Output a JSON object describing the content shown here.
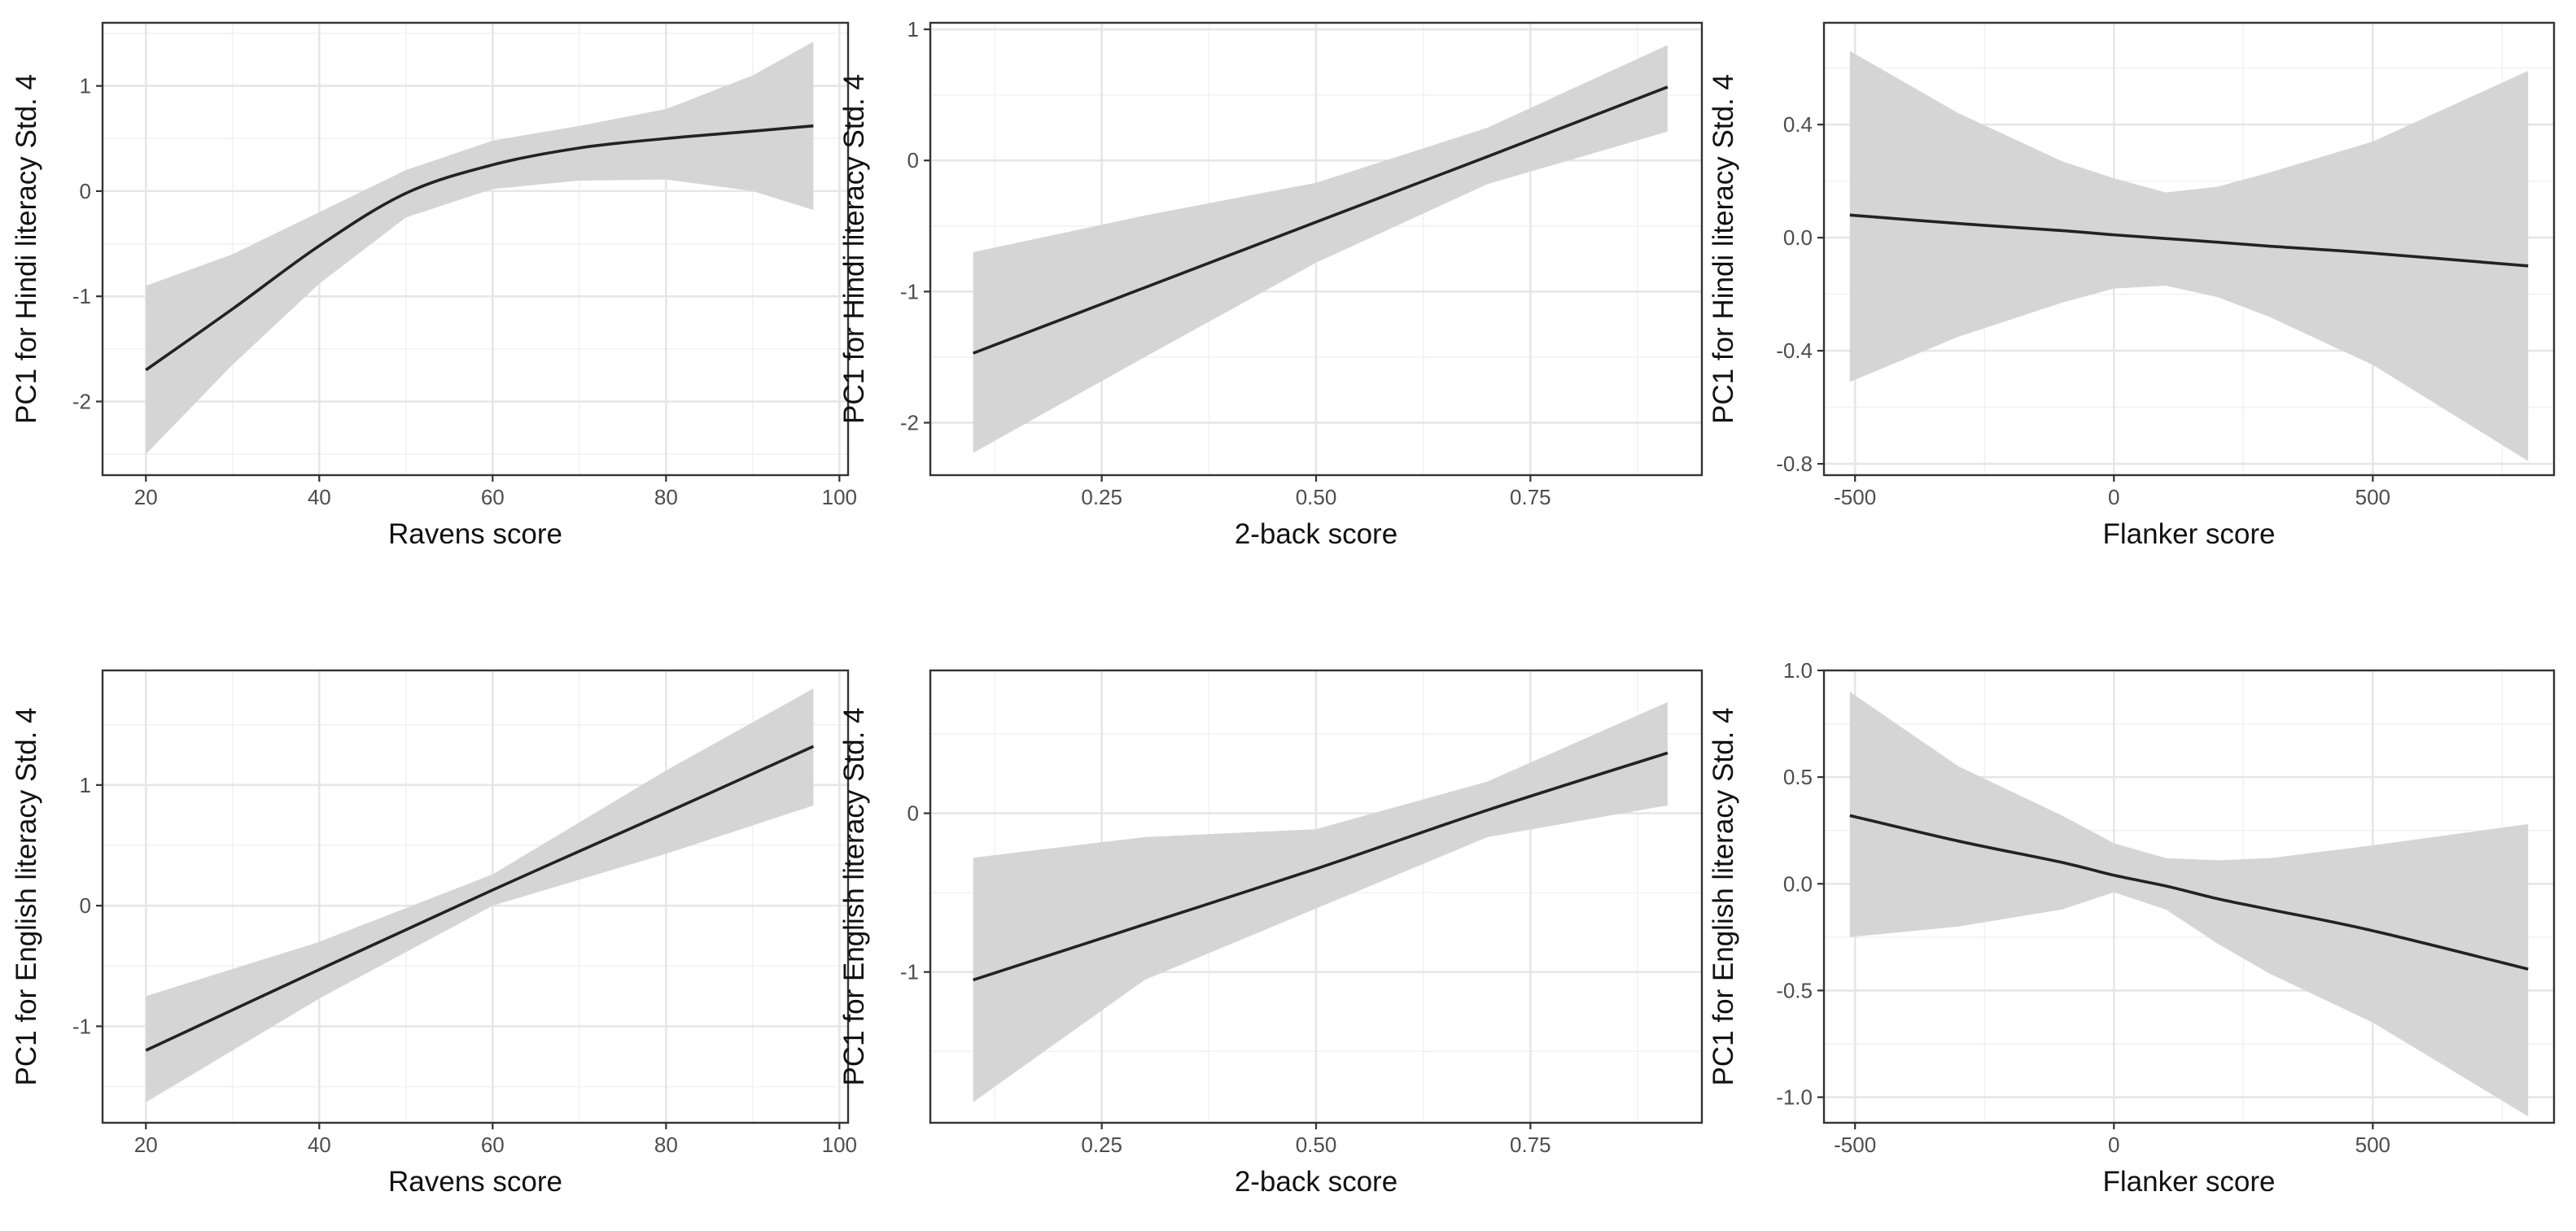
{
  "chart_data": [
    {
      "type": "line",
      "id": "hindi-ravens",
      "xlabel": "Ravens score",
      "ylabel": "PC1 for Hindi literacy Std. 4",
      "xlim": [
        15,
        101
      ],
      "ylim": [
        -2.7,
        1.6
      ],
      "xticks": [
        20,
        40,
        60,
        80,
        100
      ],
      "xtick_labels": [
        "20",
        "40",
        "60",
        "80",
        "100"
      ],
      "yticks": [
        -2,
        -1,
        0,
        1
      ],
      "ytick_labels": [
        "-2",
        "-1",
        "0",
        "1"
      ],
      "x": [
        20,
        30,
        40,
        50,
        60,
        70,
        80,
        90,
        97
      ],
      "fit": [
        -1.7,
        -1.12,
        -0.52,
        -0.02,
        0.25,
        0.41,
        0.5,
        0.57,
        0.62
      ],
      "lower": [
        -2.5,
        -1.65,
        -0.88,
        -0.25,
        0.02,
        0.1,
        0.11,
        0.0,
        -0.18
      ],
      "upper": [
        -0.9,
        -0.6,
        -0.2,
        0.2,
        0.48,
        0.62,
        0.78,
        1.1,
        1.42
      ]
    },
    {
      "type": "line",
      "id": "hindi-2back",
      "xlabel": "2-back score",
      "ylabel": "PC1 for Hindi literacy Std. 4",
      "xlim": [
        0.05,
        0.95
      ],
      "ylim": [
        -2.4,
        1.05
      ],
      "xticks": [
        0.25,
        0.5,
        0.75
      ],
      "xtick_labels": [
        "0.25",
        "0.50",
        "0.75"
      ],
      "yticks": [
        -2,
        -1,
        0,
        1
      ],
      "ytick_labels": [
        "-2",
        "-1",
        "0",
        "1"
      ],
      "x": [
        0.1,
        0.3,
        0.5,
        0.7,
        0.91
      ],
      "fit": [
        -1.47,
        -0.97,
        -0.47,
        0.03,
        0.56
      ],
      "lower": [
        -2.23,
        -1.5,
        -0.78,
        -0.18,
        0.22
      ],
      "upper": [
        -0.7,
        -0.42,
        -0.17,
        0.25,
        0.88
      ]
    },
    {
      "type": "line",
      "id": "hindi-flanker",
      "xlabel": "Flanker score",
      "ylabel": "PC1 for Hindi literacy Std. 4",
      "xlim": [
        -560,
        850
      ],
      "ylim": [
        -0.84,
        0.76
      ],
      "xticks": [
        -500,
        0,
        500
      ],
      "xtick_labels": [
        "-500",
        "0",
        "500"
      ],
      "yticks": [
        -0.8,
        -0.4,
        0.0,
        0.4
      ],
      "ytick_labels": [
        "-0.8",
        "-0.4",
        "0.0",
        "0.4"
      ],
      "x": [
        -510,
        -300,
        -100,
        0,
        100,
        200,
        300,
        500,
        800
      ],
      "fit": [
        0.08,
        0.05,
        0.025,
        0.01,
        -0.003,
        -0.016,
        -0.03,
        -0.055,
        -0.1
      ],
      "lower": [
        -0.51,
        -0.35,
        -0.23,
        -0.18,
        -0.17,
        -0.21,
        -0.28,
        -0.45,
        -0.79
      ],
      "upper": [
        0.66,
        0.44,
        0.27,
        0.21,
        0.16,
        0.18,
        0.23,
        0.34,
        0.59
      ]
    },
    {
      "type": "line",
      "id": "english-ravens",
      "xlabel": "Ravens score",
      "ylabel": "PC1 for English literacy Std. 4",
      "xlim": [
        15,
        101
      ],
      "ylim": [
        -1.8,
        1.95
      ],
      "xticks": [
        20,
        40,
        60,
        80,
        100
      ],
      "xtick_labels": [
        "20",
        "40",
        "60",
        "80",
        "100"
      ],
      "yticks": [
        -1,
        0,
        1
      ],
      "ytick_labels": [
        "-1",
        "0",
        "1"
      ],
      "x": [
        20,
        40,
        60,
        80,
        97
      ],
      "fit": [
        -1.2,
        -0.53,
        0.13,
        0.77,
        1.32
      ],
      "lower": [
        -1.63,
        -0.77,
        0.0,
        0.43,
        0.83
      ],
      "upper": [
        -0.75,
        -0.3,
        0.26,
        1.12,
        1.8
      ]
    },
    {
      "type": "line",
      "id": "english-2back",
      "xlabel": "2-back score",
      "ylabel": "PC1 for English literacy Std. 4",
      "xlim": [
        0.05,
        0.95
      ],
      "ylim": [
        -1.95,
        0.9
      ],
      "xticks": [
        0.25,
        0.5,
        0.75
      ],
      "xtick_labels": [
        "0.25",
        "0.50",
        "0.75"
      ],
      "yticks": [
        -1,
        0
      ],
      "ytick_labels": [
        "-1",
        "0"
      ],
      "x": [
        0.1,
        0.3,
        0.5,
        0.7,
        0.91
      ],
      "fit": [
        -1.05,
        -0.7,
        -0.35,
        0.02,
        0.38
      ],
      "lower": [
        -1.82,
        -1.05,
        -0.6,
        -0.15,
        0.05
      ],
      "upper": [
        -0.28,
        -0.15,
        -0.1,
        0.2,
        0.7
      ]
    },
    {
      "type": "line",
      "id": "english-flanker",
      "xlabel": "Flanker score",
      "ylabel": "PC1 for English literacy Std. 4",
      "xlim": [
        -560,
        850
      ],
      "ylim": [
        -1.12,
        1.0
      ],
      "xticks": [
        -500,
        0,
        500
      ],
      "xtick_labels": [
        "-500",
        "0",
        "500"
      ],
      "yticks": [
        -1.0,
        -0.5,
        0.0,
        0.5,
        1.0
      ],
      "ytick_labels": [
        "-1.0",
        "-0.5",
        "0.0",
        "0.5",
        "1.0"
      ],
      "x": [
        -510,
        -300,
        -100,
        0,
        100,
        200,
        300,
        500,
        800
      ],
      "fit": [
        0.32,
        0.2,
        0.1,
        0.04,
        -0.01,
        -0.07,
        -0.12,
        -0.22,
        -0.4
      ],
      "lower": [
        -0.25,
        -0.2,
        -0.12,
        -0.04,
        -0.12,
        -0.28,
        -0.42,
        -0.65,
        -1.09
      ],
      "upper": [
        0.9,
        0.55,
        0.32,
        0.19,
        0.12,
        0.11,
        0.12,
        0.18,
        0.28
      ]
    }
  ]
}
